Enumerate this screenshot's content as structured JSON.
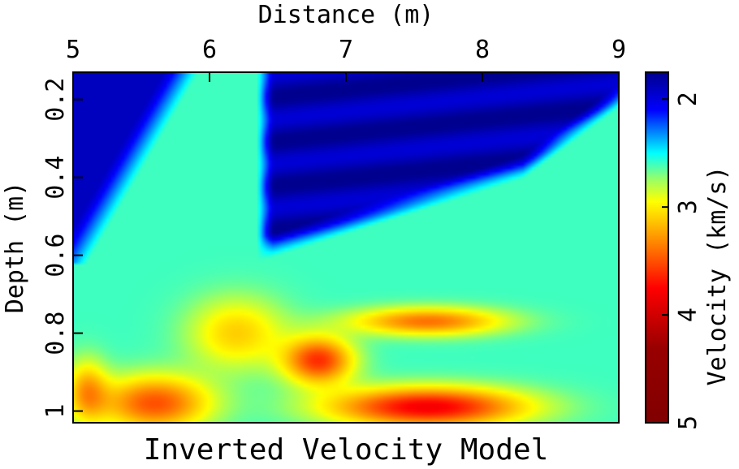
{
  "chart_data": {
    "type": "heatmap",
    "title": "Inverted Velocity Model",
    "xlabel": "Distance (m)",
    "ylabel": "Depth (m)",
    "colorbar_label": "Velocity (km/s)",
    "x_axis_position": "top",
    "y_axis_direction": "downward",
    "xlim": [
      5,
      9
    ],
    "ylim": [
      0.13,
      1.03
    ],
    "x_ticks": [
      5,
      6,
      7,
      8,
      9
    ],
    "x_tick_labels": [
      "5",
      "6",
      "7",
      "8",
      "9"
    ],
    "y_ticks": [
      0.2,
      0.4,
      0.6,
      0.8,
      1.0
    ],
    "y_tick_labels": [
      "0.2",
      "0.4",
      "0.6",
      "0.8",
      "1"
    ],
    "colorbar_range": [
      1.75,
      5.0
    ],
    "colorbar_ticks": [
      2,
      3,
      4,
      5
    ],
    "colorbar_tick_labels": [
      "2",
      "3",
      "4",
      "5"
    ],
    "colormap": "jet_reversed",
    "colormap_stops": [
      {
        "v": 1.75,
        "color": "#00008f"
      },
      {
        "v": 2.1,
        "color": "#0000ff"
      },
      {
        "v": 2.5,
        "color": "#00ffff"
      },
      {
        "v": 2.75,
        "color": "#9cff62"
      },
      {
        "v": 2.95,
        "color": "#ffff00"
      },
      {
        "v": 3.35,
        "color": "#ff8000"
      },
      {
        "v": 3.75,
        "color": "#ff0000"
      },
      {
        "v": 4.3,
        "color": "#990000"
      },
      {
        "v": 5.0,
        "color": "#800000"
      }
    ],
    "grid": false,
    "field_description_values": {
      "background_velocity": 2.6,
      "left_low_velocity_wedge": 1.9,
      "right_low_velocity_zone": 1.85,
      "middle_high_velocity_bands": [
        3.4,
        3.6,
        3.7
      ],
      "deep_high_velocity_layer": 3.8
    }
  }
}
